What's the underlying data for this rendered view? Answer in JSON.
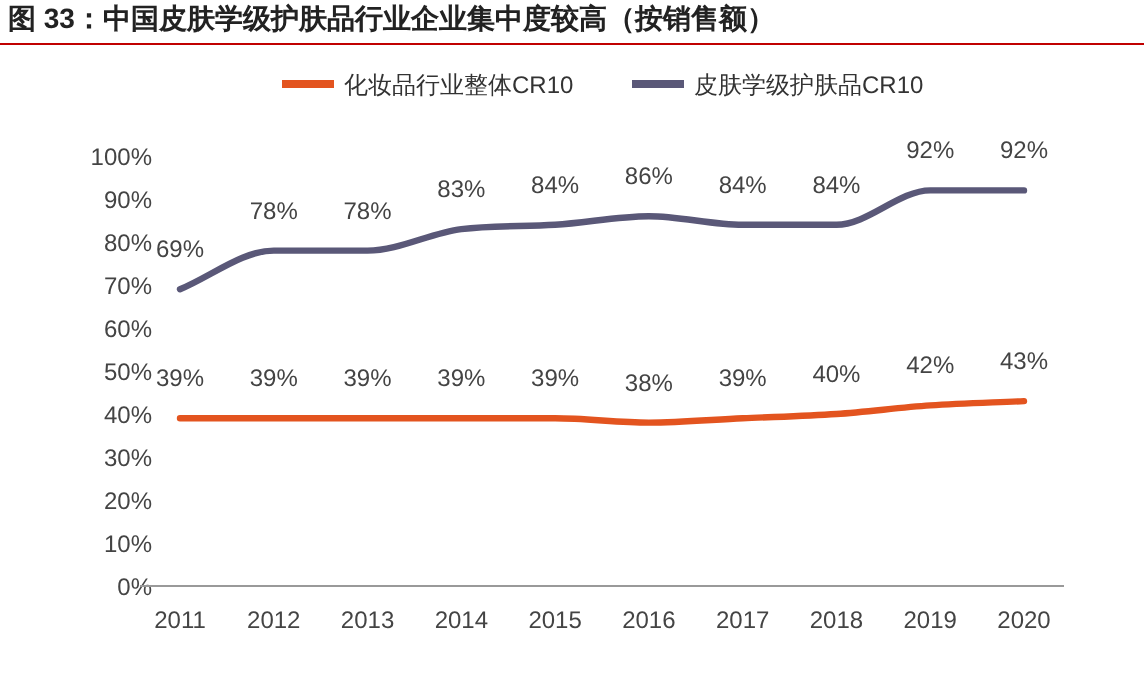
{
  "chart_data": {
    "type": "line",
    "title": "图 33：中国皮肤学级护肤品行业企业集中度较高（按销售额）",
    "categories": [
      "2011",
      "2012",
      "2013",
      "2014",
      "2015",
      "2016",
      "2017",
      "2018",
      "2019",
      "2020"
    ],
    "series": [
      {
        "name": "化妆品行业整体CR10",
        "color": "#e3541f",
        "values": [
          39,
          39,
          39,
          39,
          39,
          38,
          39,
          40,
          42,
          43
        ],
        "value_labels": [
          "39%",
          "39%",
          "39%",
          "39%",
          "39%",
          "38%",
          "39%",
          "40%",
          "42%",
          "43%"
        ]
      },
      {
        "name": "皮肤学级护肤品CR10",
        "color": "#5a5878",
        "values": [
          69,
          78,
          78,
          83,
          84,
          86,
          84,
          84,
          92,
          92
        ],
        "value_labels": [
          "69%",
          "78%",
          "78%",
          "83%",
          "84%",
          "86%",
          "84%",
          "84%",
          "92%",
          "92%"
        ]
      }
    ],
    "ylim": [
      0,
      100
    ],
    "yticks": [
      {
        "value": 0,
        "label": "0%"
      },
      {
        "value": 10,
        "label": "10%"
      },
      {
        "value": 20,
        "label": "20%"
      },
      {
        "value": 30,
        "label": "30%"
      },
      {
        "value": 40,
        "label": "40%"
      },
      {
        "value": 50,
        "label": "50%"
      },
      {
        "value": 60,
        "label": "60%"
      },
      {
        "value": 70,
        "label": "70%"
      },
      {
        "value": 80,
        "label": "80%"
      },
      {
        "value": 90,
        "label": "90%"
      },
      {
        "value": 100,
        "label": "100%"
      }
    ],
    "legend": "top",
    "grid": false
  }
}
